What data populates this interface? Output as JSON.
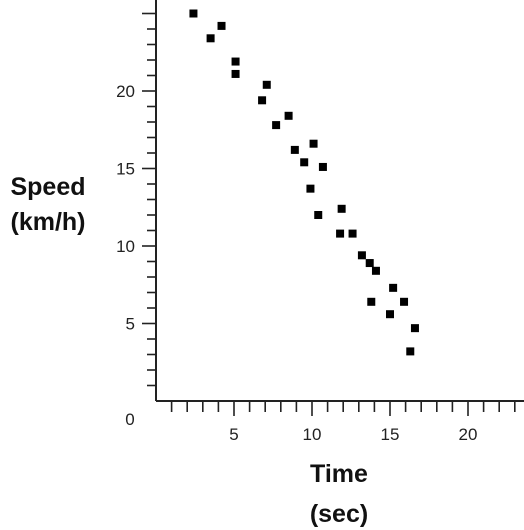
{
  "chart_data": {
    "type": "scatter",
    "title": "",
    "xlabel": [
      "Time",
      "(sec)"
    ],
    "ylabel": [
      "Speed",
      "(km/h)"
    ],
    "xlim": [
      0,
      23.5
    ],
    "ylim": [
      0,
      27
    ],
    "origin_label": "0",
    "x_ticks": [
      "5",
      "10",
      "15",
      "20"
    ],
    "y_ticks": [
      "5",
      "10",
      "15",
      "20"
    ],
    "grid": false,
    "series": [
      {
        "points": [
          {
            "x": 2.4,
            "y": 25.0
          },
          {
            "x": 3.5,
            "y": 23.4
          },
          {
            "x": 4.2,
            "y": 24.2
          },
          {
            "x": 5.1,
            "y": 21.9
          },
          {
            "x": 5.1,
            "y": 21.1
          },
          {
            "x": 6.8,
            "y": 19.4
          },
          {
            "x": 7.1,
            "y": 20.4
          },
          {
            "x": 7.7,
            "y": 17.8
          },
          {
            "x": 8.5,
            "y": 18.4
          },
          {
            "x": 8.9,
            "y": 16.2
          },
          {
            "x": 9.5,
            "y": 15.4
          },
          {
            "x": 9.9,
            "y": 13.7
          },
          {
            "x": 10.1,
            "y": 16.6
          },
          {
            "x": 10.4,
            "y": 12.0
          },
          {
            "x": 10.7,
            "y": 15.1
          },
          {
            "x": 11.8,
            "y": 10.8
          },
          {
            "x": 11.9,
            "y": 12.4
          },
          {
            "x": 12.6,
            "y": 10.8
          },
          {
            "x": 13.2,
            "y": 9.4
          },
          {
            "x": 13.7,
            "y": 8.9
          },
          {
            "x": 13.8,
            "y": 6.4
          },
          {
            "x": 14.1,
            "y": 8.4
          },
          {
            "x": 15.0,
            "y": 5.6
          },
          {
            "x": 15.2,
            "y": 7.3
          },
          {
            "x": 15.9,
            "y": 6.4
          },
          {
            "x": 16.3,
            "y": 3.2
          },
          {
            "x": 16.6,
            "y": 4.7
          }
        ]
      }
    ]
  }
}
